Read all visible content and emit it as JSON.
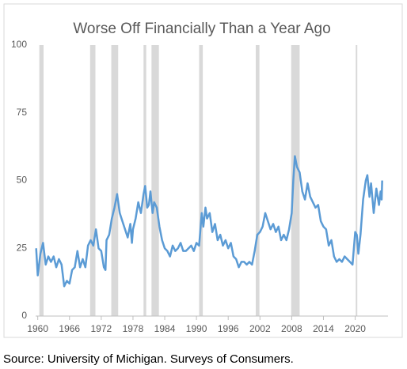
{
  "chart_data": {
    "type": "line",
    "title": "Worse Off Financially Than a Year Ago",
    "source": "Source: University of Michigan. Surveys of Consumers.",
    "color": "#5b9bd5",
    "shade_color": "#d9d9d9",
    "recessions": [
      [
        1960.3,
        1961.1
      ],
      [
        1969.9,
        1970.9
      ],
      [
        1973.9,
        1975.2
      ],
      [
        1980.0,
        1980.5
      ],
      [
        1981.5,
        1982.9
      ],
      [
        1990.5,
        1991.2
      ],
      [
        2001.2,
        2001.9
      ],
      [
        2007.9,
        2009.5
      ],
      [
        2020.1,
        2020.4
      ]
    ],
    "x": [
      1959.7,
      1960,
      1960.5,
      1961,
      1961.5,
      1962,
      1962.5,
      1963,
      1963.5,
      1964,
      1964.5,
      1965,
      1965.5,
      1966,
      1966.5,
      1967,
      1967.5,
      1968,
      1968.5,
      1969,
      1969.5,
      1970,
      1970.5,
      1971,
      1971.5,
      1972,
      1972.5,
      1972.8,
      1973,
      1973.5,
      1974,
      1974.5,
      1975,
      1975.5,
      1976,
      1976.5,
      1977,
      1977.5,
      1977.8,
      1978,
      1978.5,
      1979,
      1979.5,
      1980,
      1980.3,
      1980.7,
      1981,
      1981.3,
      1981.7,
      1982,
      1982.5,
      1983,
      1983.5,
      1984,
      1984.5,
      1985,
      1985.5,
      1986,
      1986.5,
      1987,
      1987.5,
      1988,
      1988.5,
      1989,
      1989.5,
      1990,
      1990.5,
      1991,
      1991.3,
      1991.7,
      1992,
      1992.5,
      1993,
      1993.5,
      1994,
      1994.5,
      1995,
      1995.5,
      1996,
      1996.5,
      1997,
      1997.5,
      1998,
      1998.5,
      1999,
      1999.5,
      2000,
      2000.5,
      2001,
      2001.5,
      2002,
      2002.5,
      2003,
      2003.5,
      2004,
      2004.5,
      2005,
      2005.5,
      2006,
      2006.5,
      2007,
      2007.5,
      2008,
      2008.3,
      2008.6,
      2009,
      2009.5,
      2010,
      2010.5,
      2011,
      2011.5,
      2012,
      2012.5,
      2013,
      2013.5,
      2014,
      2014.5,
      2015,
      2015.5,
      2016,
      2016.5,
      2017,
      2017.5,
      2018,
      2018.5,
      2019,
      2019.5,
      2020,
      2020.3,
      2020.6,
      2021,
      2021.5,
      2022,
      2022.3,
      2022.7,
      2023,
      2023.5,
      2024,
      2024.5,
      2024.8,
      2025,
      2025.1
    ],
    "values": [
      25,
      15,
      23,
      27,
      19,
      22,
      20,
      22,
      18,
      21,
      19,
      11,
      13,
      12,
      17,
      18,
      24,
      18,
      21,
      18,
      26,
      28,
      26,
      32,
      25,
      24,
      18,
      17,
      28,
      30,
      36,
      40,
      45,
      38,
      35,
      32,
      29,
      34,
      27,
      32,
      36,
      42,
      38,
      45,
      48,
      40,
      41,
      46,
      38,
      42,
      40,
      33,
      28,
      25,
      24,
      22,
      26,
      24,
      25,
      27,
      24,
      24,
      25,
      26,
      24,
      27,
      26,
      38,
      33,
      40,
      36,
      38,
      31,
      34,
      28,
      30,
      26,
      28,
      25,
      27,
      22,
      21,
      18,
      20,
      20,
      19,
      20,
      19,
      24,
      30,
      31,
      33,
      38,
      35,
      32,
      34,
      31,
      33,
      28,
      30,
      28,
      32,
      38,
      50,
      59,
      55,
      53,
      46,
      43,
      49,
      44,
      42,
      40,
      41,
      35,
      33,
      32,
      26,
      28,
      22,
      20,
      21,
      20,
      22,
      21,
      20,
      19,
      31,
      30,
      23,
      30,
      43,
      50,
      52,
      44,
      49,
      38,
      47,
      41,
      46,
      43,
      50
    ],
    "xlim": [
      1959.6,
      2026.2
    ],
    "ylim": [
      0,
      100
    ],
    "xticks": [
      1960,
      1966,
      1972,
      1978,
      1984,
      1990,
      1996,
      2002,
      2008,
      2014,
      2020
    ],
    "yticks": [
      0,
      25,
      50,
      75,
      100
    ]
  }
}
